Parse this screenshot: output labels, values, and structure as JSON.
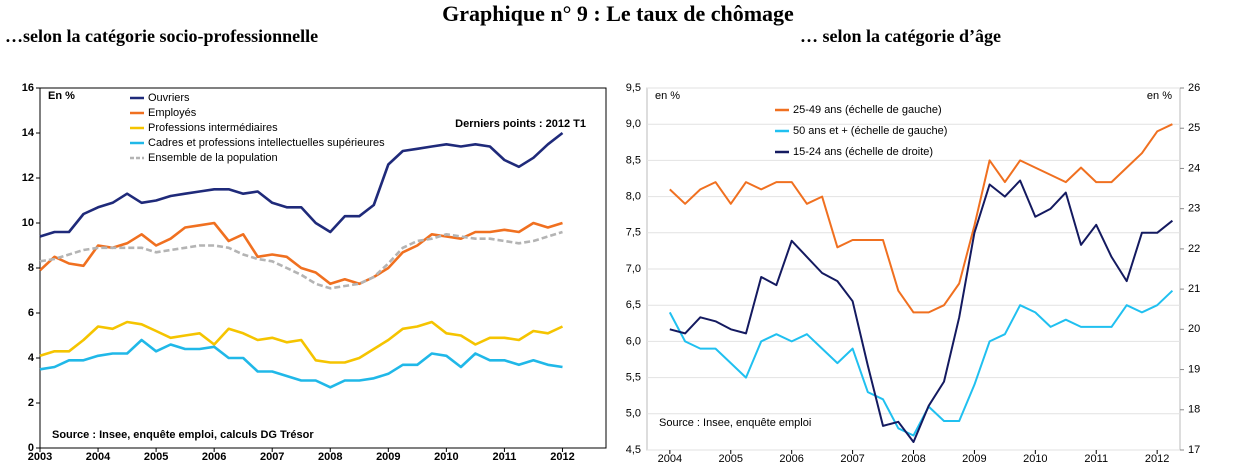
{
  "title": "Graphique n° 9 :  Le taux de chômage",
  "chart_data": [
    {
      "type": "line",
      "title": "…selon la catégorie socio-professionnelle",
      "ylabel": "En %",
      "annotation": "Derniers points : 2012 T1",
      "source": "Source : Insee, enquête emploi, calculs DG Trésor",
      "x": [
        2003,
        2003.25,
        2003.5,
        2003.75,
        2004,
        2004.25,
        2004.5,
        2004.75,
        2005,
        2005.25,
        2005.5,
        2005.75,
        2006,
        2006.25,
        2006.5,
        2006.75,
        2007,
        2007.25,
        2007.5,
        2007.75,
        2008,
        2008.25,
        2008.5,
        2008.75,
        2009,
        2009.25,
        2009.5,
        2009.75,
        2010,
        2010.25,
        2010.5,
        2010.75,
        2011,
        2011.25,
        2011.5,
        2011.75,
        2012
      ],
      "xlim": [
        2003,
        2012.75
      ],
      "xticks": [
        2003,
        2004,
        2005,
        2006,
        2007,
        2008,
        2009,
        2010,
        2011,
        2012
      ],
      "ylim": [
        0,
        16
      ],
      "yticks": [
        0,
        2,
        4,
        6,
        8,
        10,
        12,
        14,
        16
      ],
      "grid": false,
      "series": [
        {
          "name": "Ouvriers",
          "color": "#1f2a7a",
          "values": [
            9.4,
            9.6,
            9.6,
            10.4,
            10.7,
            10.9,
            11.3,
            10.9,
            11.0,
            11.2,
            11.3,
            11.4,
            11.5,
            11.5,
            11.3,
            11.4,
            10.9,
            10.7,
            10.7,
            10.0,
            9.6,
            10.3,
            10.3,
            10.8,
            12.6,
            13.2,
            13.3,
            13.4,
            13.5,
            13.4,
            13.5,
            13.4,
            12.8,
            12.5,
            12.9,
            13.5,
            14.0
          ]
        },
        {
          "name": "Employés",
          "color": "#f07020",
          "values": [
            7.9,
            8.5,
            8.2,
            8.1,
            9.0,
            8.9,
            9.1,
            9.5,
            9.0,
            9.3,
            9.8,
            9.9,
            10.0,
            9.2,
            9.5,
            8.5,
            8.6,
            8.5,
            8.0,
            7.8,
            7.3,
            7.5,
            7.3,
            7.6,
            8.0,
            8.7,
            9.0,
            9.5,
            9.4,
            9.3,
            9.6,
            9.6,
            9.7,
            9.6,
            10.0,
            9.8,
            10.0
          ]
        },
        {
          "name": "Professions intermédiaires",
          "color": "#f5c400",
          "values": [
            4.1,
            4.3,
            4.3,
            4.8,
            5.4,
            5.3,
            5.6,
            5.5,
            5.2,
            4.9,
            5.0,
            5.1,
            4.6,
            5.3,
            5.1,
            4.8,
            4.9,
            4.7,
            4.8,
            3.9,
            3.8,
            3.8,
            4.0,
            4.4,
            4.8,
            5.3,
            5.4,
            5.6,
            5.1,
            5.0,
            4.6,
            4.9,
            4.9,
            4.8,
            5.2,
            5.1,
            5.4
          ]
        },
        {
          "name": "Cadres et professions intellectuelles supérieures",
          "color": "#20b8e8",
          "values": [
            3.5,
            3.6,
            3.9,
            3.9,
            4.1,
            4.2,
            4.2,
            4.8,
            4.3,
            4.6,
            4.4,
            4.4,
            4.5,
            4.0,
            4.0,
            3.4,
            3.4,
            3.2,
            3.0,
            3.0,
            2.7,
            3.0,
            3.0,
            3.1,
            3.3,
            3.7,
            3.7,
            4.2,
            4.1,
            3.6,
            4.2,
            3.9,
            3.9,
            3.7,
            3.9,
            3.7,
            3.6
          ]
        },
        {
          "name": "Ensemble de la population",
          "color": "#b4b4b4",
          "dash": true,
          "values": [
            8.3,
            8.4,
            8.6,
            8.8,
            8.9,
            8.9,
            8.9,
            8.9,
            8.7,
            8.8,
            8.9,
            9.0,
            9.0,
            8.9,
            8.6,
            8.4,
            8.3,
            8.0,
            7.7,
            7.3,
            7.1,
            7.2,
            7.3,
            7.6,
            8.2,
            8.9,
            9.2,
            9.3,
            9.5,
            9.4,
            9.3,
            9.3,
            9.2,
            9.1,
            9.2,
            9.4,
            9.6
          ]
        }
      ]
    },
    {
      "type": "line",
      "title": "… selon la catégorie d’âge",
      "ylabel": "en %",
      "y2label": "en %",
      "source": "Source : Insee, enquête emploi",
      "x": [
        2004,
        2004.25,
        2004.5,
        2004.75,
        2005,
        2005.25,
        2005.5,
        2005.75,
        2006,
        2006.25,
        2006.5,
        2006.75,
        2007,
        2007.25,
        2007.5,
        2007.75,
        2008,
        2008.25,
        2008.5,
        2008.75,
        2009,
        2009.25,
        2009.5,
        2009.75,
        2010,
        2010.25,
        2010.5,
        2010.75,
        2011,
        2011.25,
        2011.5,
        2011.75,
        2012,
        2012.25
      ],
      "xlim": [
        2003.625,
        2012.375
      ],
      "xticks": [
        2004,
        2005,
        2006,
        2007,
        2008,
        2009,
        2010,
        2011,
        2012
      ],
      "ylim": [
        4.5,
        9.5
      ],
      "yticks": [
        {
          "value": 4.5,
          "label": "4,5"
        },
        {
          "value": 5,
          "label": "5,0"
        },
        {
          "value": 5.5,
          "label": "5,5"
        },
        {
          "value": 6,
          "label": "6,0"
        },
        {
          "value": 6.5,
          "label": "6,5"
        },
        {
          "value": 7,
          "label": "7,0"
        },
        {
          "value": 7.5,
          "label": "7,5"
        },
        {
          "value": 8,
          "label": "8,0"
        },
        {
          "value": 8.5,
          "label": "8,5"
        },
        {
          "value": 9,
          "label": "9,0"
        },
        {
          "value": 9.5,
          "label": "9,5"
        }
      ],
      "y2lim": [
        17,
        26
      ],
      "y2ticks": [
        17,
        18,
        19,
        20,
        21,
        22,
        23,
        24,
        25,
        26
      ],
      "grid": true,
      "series": [
        {
          "name": "25-49 ans (échelle de gauche)",
          "color": "#f07020",
          "values": [
            8.1,
            7.9,
            8.1,
            8.2,
            7.9,
            8.2,
            8.1,
            8.2,
            8.2,
            7.9,
            8.0,
            7.3,
            7.4,
            7.4,
            7.4,
            6.7,
            6.4,
            6.4,
            6.5,
            6.8,
            7.6,
            8.5,
            8.2,
            8.5,
            8.4,
            8.3,
            8.2,
            8.4,
            8.2,
            8.2,
            8.4,
            8.6,
            8.9,
            9.0
          ]
        },
        {
          "name": "50 ans et + (échelle de gauche)",
          "color": "#20c0f0",
          "values": [
            6.4,
            6.0,
            5.9,
            5.9,
            5.7,
            5.5,
            6.0,
            6.1,
            6.0,
            6.1,
            5.9,
            5.7,
            5.9,
            5.3,
            5.2,
            4.8,
            4.7,
            5.1,
            4.9,
            4.9,
            5.4,
            6.0,
            6.1,
            6.5,
            6.4,
            6.2,
            6.3,
            6.2,
            6.2,
            6.2,
            6.5,
            6.4,
            6.5,
            6.7
          ]
        },
        {
          "name": "15-24 ans (échelle de droite)",
          "color": "#141a60",
          "axis": "y2",
          "values": [
            20.0,
            19.9,
            20.3,
            20.2,
            20.0,
            19.9,
            21.3,
            21.1,
            22.2,
            21.8,
            21.4,
            21.2,
            20.7,
            19.1,
            17.6,
            17.7,
            17.2,
            18.1,
            18.7,
            20.3,
            22.4,
            23.6,
            23.3,
            23.7,
            22.8,
            23.0,
            23.4,
            22.1,
            22.6,
            21.8,
            21.2,
            22.4,
            22.4,
            22.7
          ]
        }
      ]
    }
  ]
}
